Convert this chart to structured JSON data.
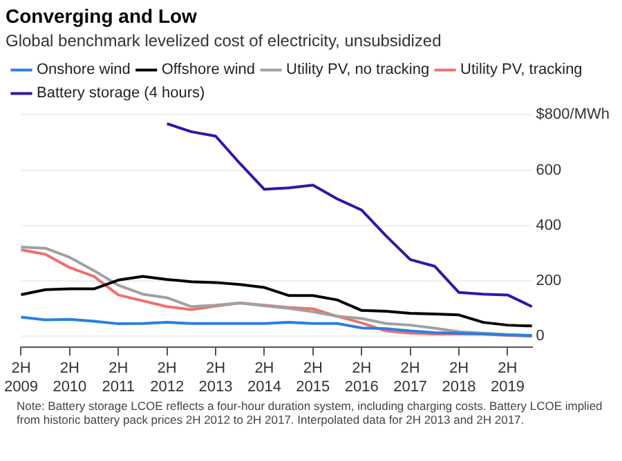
{
  "chart_data": {
    "type": "line",
    "title": "Converging and Low",
    "subtitle": "Global benchmark levelized cost of electricity, unsubsidized",
    "categories": [
      "2H 2009",
      null,
      "2H 2010",
      null,
      "2H 2011",
      null,
      "2H 2012",
      null,
      "2H 2013",
      null,
      "2H 2014",
      null,
      "2H 2015",
      null,
      "2H 2016",
      null,
      "2H 2017",
      null,
      "2H 2018",
      null,
      "2H 2019",
      null
    ],
    "series": [
      {
        "name": "Onshore wind",
        "color": "#2b7fe0",
        "values": [
          69,
          59,
          61,
          54,
          45,
          46,
          50,
          46,
          46,
          46,
          46,
          50,
          46,
          46,
          30,
          27,
          19,
          13,
          11,
          8,
          5,
          2
        ]
      },
      {
        "name": "Offshore wind",
        "color": "#000000",
        "values": [
          150,
          168,
          171,
          171,
          203,
          216,
          205,
          197,
          194,
          187,
          176,
          147,
          147,
          131,
          93,
          90,
          83,
          80,
          77,
          50,
          40,
          37
        ]
      },
      {
        "name": "Utility PV, no tracking",
        "color": "#a0a0a0",
        "values": [
          322,
          318,
          285,
          237,
          184,
          152,
          139,
          107,
          112,
          120,
          110,
          101,
          88,
          72,
          64,
          46,
          40,
          29,
          16,
          11,
          6,
          3
        ]
      },
      {
        "name": "Utility PV, tracking",
        "color": "#f07070",
        "values": [
          312,
          296,
          248,
          216,
          149,
          128,
          107,
          96,
          109,
          120,
          112,
          104,
          99,
          72,
          48,
          19,
          11,
          8,
          8,
          8,
          3,
          0
        ]
      },
      {
        "name": "Battery storage (4 hours)",
        "color": "#2a1aa8",
        "values": [
          null,
          null,
          null,
          null,
          null,
          null,
          768,
          739,
          723,
          624,
          531,
          536,
          546,
          496,
          456,
          363,
          277,
          253,
          158,
          152,
          149,
          107
        ]
      }
    ],
    "ylim": [
      -40,
      800
    ],
    "yticks": [
      0,
      200,
      400,
      600,
      {
        "value": 800,
        "label": "$800/MWh"
      }
    ],
    "grid": "y",
    "legend": "top left",
    "marker": "none",
    "line_style": "solid",
    "annotations": [
      "Note: Battery storage LCOE reflects a four-hour duration system, including charging costs. Battery LCOE implied from historic battery pack prices 2H 2012 to 2H 2017. Interpolated data for 2H 2013 and 2H 2017."
    ]
  }
}
